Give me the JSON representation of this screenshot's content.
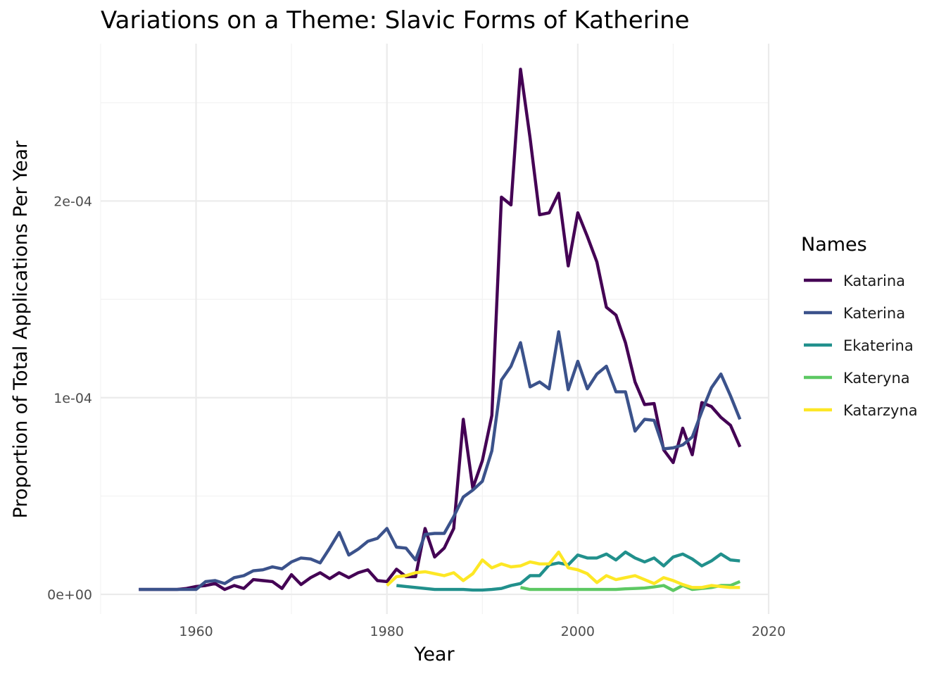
{
  "chart_data": {
    "type": "line",
    "title": "Variations on a Theme: Slavic Forms of Katherine",
    "xlabel": "Year",
    "ylabel": "Proportion of Total Applications Per Year",
    "xlim": [
      1950,
      2020
    ],
    "ylim": [
      -1e-05,
      0.00028
    ],
    "x_ticks": [
      1960,
      1980,
      2000,
      2020
    ],
    "x_tick_labels": [
      "1960",
      "1980",
      "2000",
      "2020"
    ],
    "y_ticks": [
      0,
      0.0001,
      0.0002
    ],
    "y_tick_labels": [
      "0e+00",
      "1e-04",
      "2e-04"
    ],
    "grid": true,
    "legend": {
      "title": "Names",
      "position": "right"
    },
    "series": [
      {
        "name": "Katarina",
        "color": "#440154",
        "x": [
          1954,
          1955,
          1956,
          1957,
          1958,
          1959,
          1960,
          1961,
          1962,
          1963,
          1964,
          1965,
          1966,
          1967,
          1968,
          1969,
          1970,
          1971,
          1972,
          1973,
          1974,
          1975,
          1976,
          1977,
          1978,
          1979,
          1980,
          1981,
          1982,
          1983,
          1984,
          1985,
          1986,
          1987,
          1988,
          1989,
          1990,
          1991,
          1992,
          1993,
          1994,
          1995,
          1996,
          1997,
          1998,
          1999,
          2000,
          2001,
          2002,
          2003,
          2004,
          2005,
          2006,
          2007,
          2008,
          2009,
          2010,
          2011,
          2012,
          2013,
          2014,
          2015,
          2016,
          2017
        ],
        "y": [
          2.5e-06,
          2.5e-06,
          2.5e-06,
          2.5e-06,
          2.5e-06,
          3e-06,
          4e-06,
          4.5e-06,
          5.5e-06,
          2.5e-06,
          4.5e-06,
          3e-06,
          7.5e-06,
          7e-06,
          6.5e-06,
          3e-06,
          1e-05,
          5e-06,
          8.5e-06,
          1.1e-05,
          8e-06,
          1.1e-05,
          8.5e-06,
          1.1e-05,
          1.25e-05,
          7e-06,
          6.5e-06,
          1.28e-05,
          9e-06,
          9e-06,
          3.35e-05,
          1.9e-05,
          2.35e-05,
          3.35e-05,
          8.9e-05,
          5.4e-05,
          6.8e-05,
          9.1e-05,
          0.000202,
          0.000198,
          0.000267,
          0.000232,
          0.000193,
          0.000194,
          0.000204,
          0.000167,
          0.000194,
          0.000182,
          0.000169,
          0.000146,
          0.000142,
          0.000128,
          0.000108,
          9.65e-05,
          9.7e-05,
          7.35e-05,
          6.7e-05,
          8.45e-05,
          7.1e-05,
          9.75e-05,
          9.55e-05,
          9e-05,
          8.6e-05,
          7.5e-05
        ]
      },
      {
        "name": "Katerina",
        "color": "#3B528B",
        "x": [
          1954,
          1955,
          1956,
          1957,
          1958,
          1959,
          1960,
          1961,
          1962,
          1963,
          1964,
          1965,
          1966,
          1967,
          1968,
          1969,
          1970,
          1971,
          1972,
          1973,
          1974,
          1975,
          1976,
          1977,
          1978,
          1979,
          1980,
          1981,
          1982,
          1983,
          1984,
          1985,
          1986,
          1987,
          1988,
          1989,
          1990,
          1991,
          1992,
          1993,
          1994,
          1995,
          1996,
          1997,
          1998,
          1999,
          2000,
          2001,
          2002,
          2003,
          2004,
          2005,
          2006,
          2007,
          2008,
          2009,
          2010,
          2011,
          2012,
          2013,
          2014,
          2015,
          2016,
          2017
        ],
        "y": [
          2.5e-06,
          2.5e-06,
          2.5e-06,
          2.5e-06,
          2.5e-06,
          2.5e-06,
          2.5e-06,
          6.5e-06,
          7e-06,
          5.5e-06,
          8.5e-06,
          9.5e-06,
          1.2e-05,
          1.25e-05,
          1.4e-05,
          1.3e-05,
          1.65e-05,
          1.85e-05,
          1.8e-05,
          1.6e-05,
          2.35e-05,
          3.15e-05,
          2e-05,
          2.3e-05,
          2.7e-05,
          2.85e-05,
          3.35e-05,
          2.4e-05,
          2.35e-05,
          1.75e-05,
          3.05e-05,
          3.1e-05,
          3.1e-05,
          3.95e-05,
          4.95e-05,
          5.3e-05,
          5.75e-05,
          7.3e-05,
          0.000109,
          0.000116,
          0.000128,
          0.0001055,
          0.000108,
          0.0001045,
          0.0001335,
          0.000104,
          0.0001185,
          0.0001045,
          0.000112,
          0.000116,
          0.000103,
          0.000103,
          8.3e-05,
          8.9e-05,
          8.85e-05,
          7.4e-05,
          7.45e-05,
          7.6e-05,
          8e-05,
          9.3e-05,
          0.000105,
          0.000112,
          0.000101,
          8.9e-05
        ]
      },
      {
        "name": "Ekaterina",
        "color": "#21908C",
        "x": [
          1981,
          1982,
          1983,
          1984,
          1985,
          1986,
          1987,
          1988,
          1989,
          1990,
          1991,
          1992,
          1993,
          1994,
          1995,
          1996,
          1997,
          1998,
          1999,
          2000,
          2001,
          2002,
          2003,
          2004,
          2005,
          2006,
          2007,
          2008,
          2009,
          2010,
          2011,
          2012,
          2013,
          2014,
          2015,
          2016,
          2017
        ],
        "y": [
          4.5e-06,
          4e-06,
          3.5e-06,
          3e-06,
          2.5e-06,
          2.5e-06,
          2.5e-06,
          2.5e-06,
          2.2e-06,
          2.2e-06,
          2.5e-06,
          3e-06,
          4.5e-06,
          5.5e-06,
          9.5e-06,
          9.5e-06,
          1.5e-05,
          1.6e-05,
          1.5e-05,
          2e-05,
          1.85e-05,
          1.85e-05,
          2.05e-05,
          1.75e-05,
          2.15e-05,
          1.85e-05,
          1.65e-05,
          1.85e-05,
          1.45e-05,
          1.9e-05,
          2.05e-05,
          1.8e-05,
          1.45e-05,
          1.7e-05,
          2.05e-05,
          1.75e-05,
          1.7e-05
        ]
      },
      {
        "name": "Kateryna",
        "color": "#5DC863",
        "x": [
          1994,
          1995,
          1996,
          1997,
          1998,
          1999,
          2000,
          2001,
          2002,
          2003,
          2004,
          2005,
          2006,
          2007,
          2008,
          2009,
          2010,
          2011,
          2012,
          2013,
          2014,
          2015,
          2016,
          2017
        ],
        "y": [
          3.5e-06,
          2.5e-06,
          2.5e-06,
          2.5e-06,
          2.5e-06,
          2.5e-06,
          2.5e-06,
          2.5e-06,
          2.5e-06,
          2.5e-06,
          2.5e-06,
          2.8e-06,
          3e-06,
          3.2e-06,
          3.8e-06,
          4.5e-06,
          2e-06,
          4.5e-06,
          2.5e-06,
          3e-06,
          3.5e-06,
          4.5e-06,
          4.5e-06,
          6.5e-06
        ]
      },
      {
        "name": "Katarzyna",
        "color": "#FDE725",
        "x": [
          1980,
          1981,
          1982,
          1983,
          1984,
          1985,
          1986,
          1987,
          1988,
          1989,
          1990,
          1991,
          1992,
          1993,
          1994,
          1995,
          1996,
          1997,
          1998,
          1999,
          2000,
          2001,
          2002,
          2003,
          2004,
          2005,
          2006,
          2007,
          2008,
          2009,
          2010,
          2011,
          2012,
          2013,
          2014,
          2015,
          2016,
          2017
        ],
        "y": [
          4.5e-06,
          9e-06,
          9.5e-06,
          1.1e-05,
          1.15e-05,
          1.05e-05,
          9.5e-06,
          1.1e-05,
          7e-06,
          1.05e-05,
          1.75e-05,
          1.35e-05,
          1.55e-05,
          1.4e-05,
          1.45e-05,
          1.65e-05,
          1.55e-05,
          1.55e-05,
          2.15e-05,
          1.35e-05,
          1.25e-05,
          1.05e-05,
          6e-06,
          9.5e-06,
          7.5e-06,
          8.5e-06,
          9.5e-06,
          7.5e-06,
          5.5e-06,
          8.5e-06,
          7e-06,
          5e-06,
          3.5e-06,
          3.5e-06,
          4.5e-06,
          4e-06,
          3.5e-06,
          3.5e-06
        ]
      }
    ]
  }
}
